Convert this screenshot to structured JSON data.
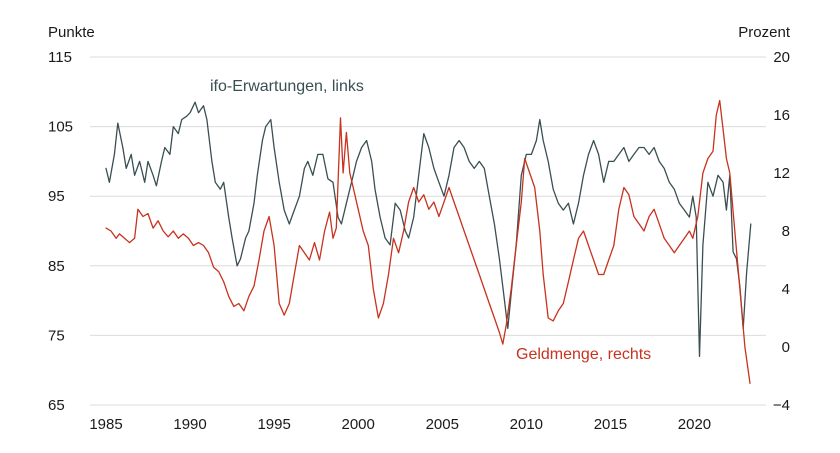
{
  "chart_data": {
    "type": "line",
    "left_axis": {
      "title": "Punkte",
      "ylim": [
        65,
        115
      ],
      "ticks": [
        65,
        75,
        85,
        95,
        105,
        115
      ]
    },
    "right_axis": {
      "title": "Prozent",
      "ylim": [
        -4,
        20
      ],
      "ticks": [
        -4,
        0,
        4,
        8,
        12,
        16,
        20
      ],
      "tick_labels": [
        "−4",
        "0",
        "4",
        "8",
        "12",
        "16",
        "20"
      ]
    },
    "x_axis": {
      "xlim": [
        1985,
        2023.6
      ],
      "ticks": [
        1985,
        1990,
        1995,
        2000,
        2005,
        2010,
        2015,
        2020
      ]
    },
    "grid": "horizontal",
    "series": [
      {
        "name": "ifo-Erwartungen, links",
        "axis": "left",
        "color": "#3a4f52",
        "points": [
          [
            1985.0,
            99
          ],
          [
            1985.2,
            97
          ],
          [
            1985.5,
            101
          ],
          [
            1985.7,
            105.5
          ],
          [
            1986.0,
            102
          ],
          [
            1986.2,
            99
          ],
          [
            1986.5,
            101
          ],
          [
            1986.7,
            98
          ],
          [
            1987.0,
            100
          ],
          [
            1987.3,
            97
          ],
          [
            1987.5,
            100
          ],
          [
            1987.8,
            98
          ],
          [
            1988.0,
            96.5
          ],
          [
            1988.3,
            100
          ],
          [
            1988.5,
            102
          ],
          [
            1988.8,
            101
          ],
          [
            1989.0,
            105
          ],
          [
            1989.3,
            104
          ],
          [
            1989.5,
            106
          ],
          [
            1989.8,
            106.5
          ],
          [
            1990.0,
            107
          ],
          [
            1990.3,
            108.5
          ],
          [
            1990.5,
            107
          ],
          [
            1990.8,
            108
          ],
          [
            1991.0,
            106
          ],
          [
            1991.3,
            100
          ],
          [
            1991.5,
            97
          ],
          [
            1991.8,
            96
          ],
          [
            1992.0,
            97
          ],
          [
            1992.3,
            92
          ],
          [
            1992.5,
            89
          ],
          [
            1992.8,
            85
          ],
          [
            1993.0,
            86
          ],
          [
            1993.3,
            89
          ],
          [
            1993.5,
            90
          ],
          [
            1993.8,
            94
          ],
          [
            1994.0,
            98
          ],
          [
            1994.3,
            103
          ],
          [
            1994.5,
            105
          ],
          [
            1994.8,
            106
          ],
          [
            1995.0,
            102
          ],
          [
            1995.3,
            97
          ],
          [
            1995.6,
            93
          ],
          [
            1995.9,
            91
          ],
          [
            1996.2,
            93
          ],
          [
            1996.5,
            95
          ],
          [
            1996.8,
            99
          ],
          [
            1997.0,
            100
          ],
          [
            1997.3,
            98
          ],
          [
            1997.6,
            101
          ],
          [
            1997.9,
            101
          ],
          [
            1998.2,
            97.5
          ],
          [
            1998.5,
            97
          ],
          [
            1998.8,
            92
          ],
          [
            1999.0,
            91
          ],
          [
            1999.3,
            94
          ],
          [
            1999.6,
            97
          ],
          [
            1999.9,
            100
          ],
          [
            2000.2,
            102
          ],
          [
            2000.5,
            103
          ],
          [
            2000.8,
            100
          ],
          [
            2001.0,
            96
          ],
          [
            2001.3,
            92
          ],
          [
            2001.6,
            89
          ],
          [
            2001.9,
            88
          ],
          [
            2002.2,
            94
          ],
          [
            2002.5,
            93
          ],
          [
            2002.8,
            90
          ],
          [
            2003.0,
            89
          ],
          [
            2003.3,
            92
          ],
          [
            2003.6,
            98
          ],
          [
            2003.9,
            104
          ],
          [
            2004.2,
            102
          ],
          [
            2004.5,
            99
          ],
          [
            2004.8,
            97
          ],
          [
            2005.1,
            95
          ],
          [
            2005.4,
            98
          ],
          [
            2005.7,
            102
          ],
          [
            2006.0,
            103
          ],
          [
            2006.3,
            102
          ],
          [
            2006.6,
            100
          ],
          [
            2006.9,
            99
          ],
          [
            2007.2,
            100
          ],
          [
            2007.5,
            99
          ],
          [
            2007.8,
            95
          ],
          [
            2008.1,
            91
          ],
          [
            2008.4,
            86
          ],
          [
            2008.7,
            80
          ],
          [
            2008.9,
            76
          ],
          [
            2009.1,
            81
          ],
          [
            2009.4,
            88
          ],
          [
            2009.7,
            98
          ],
          [
            2010.0,
            101
          ],
          [
            2010.3,
            101
          ],
          [
            2010.6,
            103
          ],
          [
            2010.8,
            106
          ],
          [
            2011.0,
            103
          ],
          [
            2011.3,
            100
          ],
          [
            2011.6,
            96
          ],
          [
            2011.9,
            94
          ],
          [
            2012.2,
            93
          ],
          [
            2012.5,
            94
          ],
          [
            2012.8,
            91
          ],
          [
            2013.1,
            94
          ],
          [
            2013.4,
            98
          ],
          [
            2013.7,
            101
          ],
          [
            2014.0,
            103
          ],
          [
            2014.3,
            101
          ],
          [
            2014.6,
            97
          ],
          [
            2014.9,
            100
          ],
          [
            2015.2,
            100
          ],
          [
            2015.5,
            101
          ],
          [
            2015.8,
            102
          ],
          [
            2016.1,
            100
          ],
          [
            2016.4,
            101
          ],
          [
            2016.7,
            102
          ],
          [
            2017.0,
            102
          ],
          [
            2017.3,
            101
          ],
          [
            2017.6,
            102
          ],
          [
            2017.9,
            100
          ],
          [
            2018.2,
            99
          ],
          [
            2018.5,
            97
          ],
          [
            2018.8,
            96
          ],
          [
            2019.1,
            94
          ],
          [
            2019.4,
            93
          ],
          [
            2019.7,
            92
          ],
          [
            2019.9,
            95
          ],
          [
            2020.1,
            92
          ],
          [
            2020.3,
            72
          ],
          [
            2020.5,
            88
          ],
          [
            2020.8,
            97
          ],
          [
            2021.1,
            95
          ],
          [
            2021.4,
            98
          ],
          [
            2021.7,
            97
          ],
          [
            2021.9,
            93
          ],
          [
            2022.1,
            98
          ],
          [
            2022.3,
            87
          ],
          [
            2022.5,
            86
          ],
          [
            2022.7,
            82
          ],
          [
            2022.9,
            76
          ],
          [
            2023.1,
            84
          ],
          [
            2023.35,
            91
          ]
        ]
      },
      {
        "name": "Geldmenge, rechts",
        "axis": "right",
        "color": "#c8321e",
        "points": [
          [
            1985.0,
            8.2
          ],
          [
            1985.3,
            8.0
          ],
          [
            1985.6,
            7.5
          ],
          [
            1985.8,
            7.8
          ],
          [
            1986.1,
            7.5
          ],
          [
            1986.4,
            7.2
          ],
          [
            1986.7,
            7.5
          ],
          [
            1986.9,
            9.5
          ],
          [
            1987.2,
            9.0
          ],
          [
            1987.5,
            9.2
          ],
          [
            1987.8,
            8.2
          ],
          [
            1988.1,
            8.7
          ],
          [
            1988.4,
            8.0
          ],
          [
            1988.7,
            7.6
          ],
          [
            1989.0,
            8.0
          ],
          [
            1989.3,
            7.5
          ],
          [
            1989.6,
            7.8
          ],
          [
            1989.9,
            7.5
          ],
          [
            1990.2,
            7.0
          ],
          [
            1990.5,
            7.2
          ],
          [
            1990.8,
            7.0
          ],
          [
            1991.1,
            6.5
          ],
          [
            1991.4,
            5.5
          ],
          [
            1991.7,
            5.2
          ],
          [
            1992.0,
            4.5
          ],
          [
            1992.3,
            3.5
          ],
          [
            1992.6,
            2.8
          ],
          [
            1992.9,
            3.0
          ],
          [
            1993.2,
            2.5
          ],
          [
            1993.5,
            3.5
          ],
          [
            1993.8,
            4.2
          ],
          [
            1994.1,
            6.0
          ],
          [
            1994.4,
            8.0
          ],
          [
            1994.7,
            9.0
          ],
          [
            1995.0,
            7.0
          ],
          [
            1995.3,
            3.0
          ],
          [
            1995.6,
            2.2
          ],
          [
            1995.9,
            3.0
          ],
          [
            1996.2,
            5.0
          ],
          [
            1996.5,
            7.0
          ],
          [
            1996.8,
            6.5
          ],
          [
            1997.1,
            6.0
          ],
          [
            1997.4,
            7.2
          ],
          [
            1997.7,
            6.0
          ],
          [
            1998.0,
            8.0
          ],
          [
            1998.3,
            9.3
          ],
          [
            1998.5,
            7.5
          ],
          [
            1998.7,
            8.2
          ],
          [
            1998.95,
            15.8
          ],
          [
            1999.1,
            12.0
          ],
          [
            1999.3,
            14.8
          ],
          [
            1999.5,
            12.0
          ],
          [
            1999.7,
            11.0
          ],
          [
            2000.0,
            9.5
          ],
          [
            2000.3,
            8.0
          ],
          [
            2000.6,
            7.0
          ],
          [
            2000.9,
            4.0
          ],
          [
            2001.2,
            2.0
          ],
          [
            2001.5,
            3.0
          ],
          [
            2001.8,
            5.0
          ],
          [
            2002.1,
            7.5
          ],
          [
            2002.4,
            6.5
          ],
          [
            2002.7,
            8.0
          ],
          [
            2003.0,
            10.0
          ],
          [
            2003.3,
            11.0
          ],
          [
            2003.6,
            10.0
          ],
          [
            2003.9,
            10.5
          ],
          [
            2004.2,
            9.5
          ],
          [
            2004.5,
            10.0
          ],
          [
            2004.8,
            9.0
          ],
          [
            2005.1,
            10.0
          ],
          [
            2005.4,
            11.0
          ],
          [
            2005.7,
            10.0
          ],
          [
            2006.0,
            9.0
          ],
          [
            2006.3,
            8.0
          ],
          [
            2006.6,
            7.0
          ],
          [
            2006.9,
            6.0
          ],
          [
            2007.2,
            5.0
          ],
          [
            2007.5,
            4.0
          ],
          [
            2007.8,
            3.0
          ],
          [
            2008.1,
            2.0
          ],
          [
            2008.4,
            1.0
          ],
          [
            2008.6,
            0.2
          ],
          [
            2008.8,
            1.5
          ],
          [
            2009.1,
            4.0
          ],
          [
            2009.4,
            7.0
          ],
          [
            2009.7,
            10.0
          ],
          [
            2009.9,
            13.0
          ],
          [
            2010.2,
            12.0
          ],
          [
            2010.5,
            11.0
          ],
          [
            2010.8,
            8.0
          ],
          [
            2011.0,
            5.0
          ],
          [
            2011.3,
            2.0
          ],
          [
            2011.6,
            1.8
          ],
          [
            2011.9,
            2.5
          ],
          [
            2012.2,
            3.0
          ],
          [
            2012.5,
            4.5
          ],
          [
            2012.8,
            6.0
          ],
          [
            2013.1,
            7.5
          ],
          [
            2013.4,
            8.0
          ],
          [
            2013.7,
            7.0
          ],
          [
            2014.0,
            6.0
          ],
          [
            2014.3,
            5.0
          ],
          [
            2014.6,
            5.0
          ],
          [
            2014.9,
            6.0
          ],
          [
            2015.2,
            7.0
          ],
          [
            2015.5,
            9.5
          ],
          [
            2015.8,
            11.0
          ],
          [
            2016.1,
            10.5
          ],
          [
            2016.4,
            9.0
          ],
          [
            2016.7,
            8.5
          ],
          [
            2017.0,
            8.0
          ],
          [
            2017.3,
            9.0
          ],
          [
            2017.6,
            9.5
          ],
          [
            2017.9,
            8.5
          ],
          [
            2018.2,
            7.5
          ],
          [
            2018.5,
            7.0
          ],
          [
            2018.8,
            6.5
          ],
          [
            2019.1,
            7.0
          ],
          [
            2019.4,
            7.5
          ],
          [
            2019.7,
            8.0
          ],
          [
            2019.9,
            7.5
          ],
          [
            2020.2,
            9.0
          ],
          [
            2020.5,
            12.0
          ],
          [
            2020.8,
            13.0
          ],
          [
            2021.1,
            13.5
          ],
          [
            2021.3,
            16.0
          ],
          [
            2021.5,
            17.0
          ],
          [
            2021.7,
            15.0
          ],
          [
            2021.9,
            13.0
          ],
          [
            2022.1,
            12.0
          ],
          [
            2022.4,
            8.0
          ],
          [
            2022.7,
            4.0
          ],
          [
            2023.0,
            0.0
          ],
          [
            2023.3,
            -2.5
          ]
        ]
      }
    ]
  }
}
